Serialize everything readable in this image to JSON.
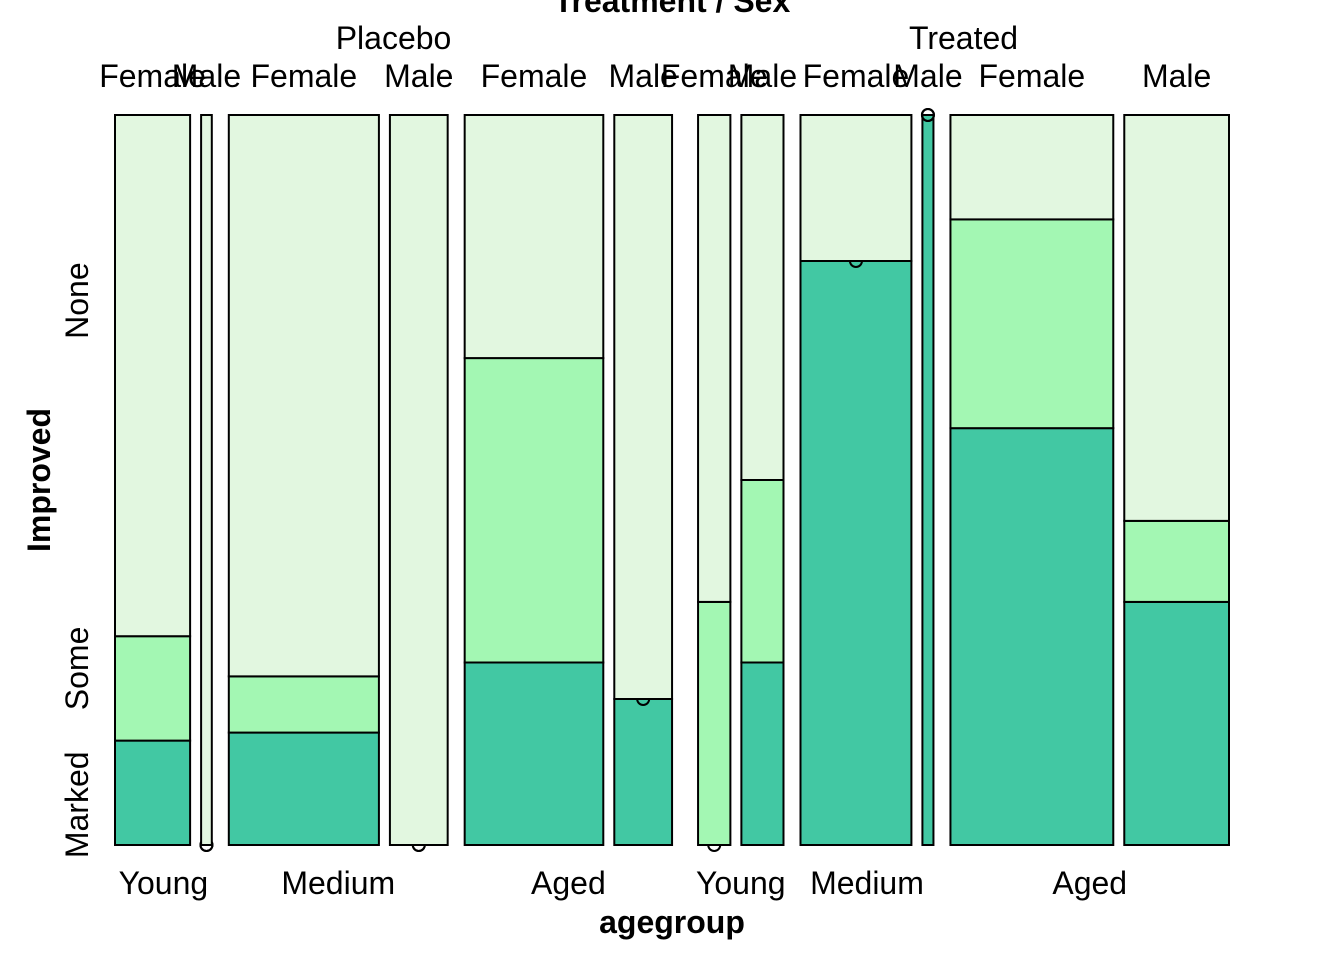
{
  "chart_data": {
    "type": "mosaic",
    "title": "Treatment / Sex",
    "xlabel": "agegroup",
    "ylabel": "Improved",
    "y_levels": [
      "Marked",
      "Some",
      "None"
    ],
    "treatment_levels": [
      "Placebo",
      "Treated"
    ],
    "agegroup_levels": [
      "Young",
      "Medium",
      "Aged"
    ],
    "sex_levels": [
      "Female",
      "Male"
    ],
    "colors": {
      "Marked": "#42c8a3",
      "Some": "#a3f7b3",
      "None": "#e2f7e0",
      "stroke": "#000000"
    },
    "cells": [
      {
        "treatment": "Placebo",
        "agegroup": "Young",
        "sex": "Female",
        "width": 0.0667,
        "Marked": 0.143,
        "Some": 0.143,
        "None": 0.714
      },
      {
        "treatment": "Placebo",
        "agegroup": "Young",
        "sex": "Male",
        "width": 0.0095,
        "Marked": 0.0,
        "Some": 0.0,
        "None": 1.0
      },
      {
        "treatment": "Placebo",
        "agegroup": "Medium",
        "sex": "Female",
        "width": 0.1333,
        "Marked": 0.154,
        "Some": 0.077,
        "None": 0.769
      },
      {
        "treatment": "Placebo",
        "agegroup": "Medium",
        "sex": "Male",
        "width": 0.0513,
        "Marked": 0.0,
        "Some": 0.0,
        "None": 1.0
      },
      {
        "treatment": "Placebo",
        "agegroup": "Aged",
        "sex": "Female",
        "width": 0.1231,
        "Marked": 0.25,
        "Some": 0.417,
        "None": 0.333
      },
      {
        "treatment": "Placebo",
        "agegroup": "Aged",
        "sex": "Male",
        "width": 0.0513,
        "Marked": 0.2,
        "Some": 0.0,
        "None": 0.8
      },
      {
        "treatment": "Treated",
        "agegroup": "Young",
        "sex": "Female",
        "width": 0.0287,
        "Marked": 0.0,
        "Some": 0.333,
        "None": 0.667
      },
      {
        "treatment": "Treated",
        "agegroup": "Young",
        "sex": "Male",
        "width": 0.0374,
        "Marked": 0.25,
        "Some": 0.25,
        "None": 0.5
      },
      {
        "treatment": "Treated",
        "agegroup": "Medium",
        "sex": "Female",
        "width": 0.0985,
        "Marked": 0.8,
        "Some": 0.0,
        "None": 0.2
      },
      {
        "treatment": "Treated",
        "agegroup": "Medium",
        "sex": "Male",
        "width": 0.0098,
        "Marked": 1.0,
        "Some": 0.0,
        "None": 0.0
      },
      {
        "treatment": "Treated",
        "agegroup": "Aged",
        "sex": "Female",
        "width": 0.1446,
        "Marked": 0.571,
        "Some": 0.286,
        "None": 0.143
      },
      {
        "treatment": "Treated",
        "agegroup": "Aged",
        "sex": "Male",
        "width": 0.093,
        "Marked": 0.333,
        "Some": 0.111,
        "None": 0.556
      }
    ]
  }
}
